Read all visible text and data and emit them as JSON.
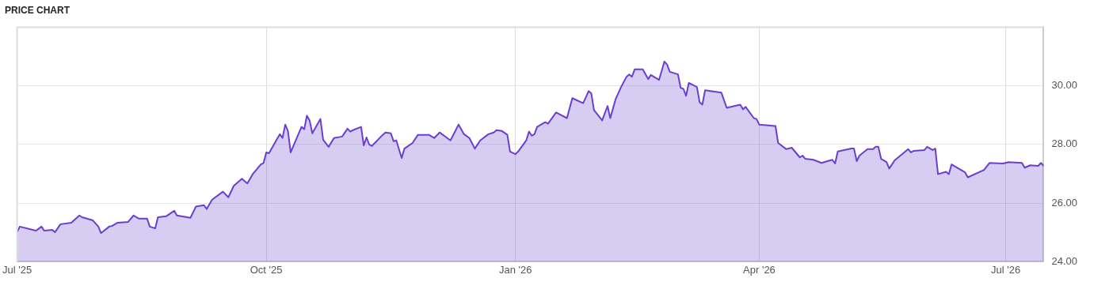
{
  "chart_data": {
    "type": "area",
    "title": "PRICE CHART",
    "x": [
      "2025-07-01",
      "2025-07-02",
      "2025-07-08",
      "2025-07-10",
      "2025-07-11",
      "2025-07-14",
      "2025-07-15",
      "2025-07-17",
      "2025-07-21",
      "2025-07-24",
      "2025-07-25",
      "2025-07-29",
      "2025-07-31",
      "2025-08-01",
      "2025-08-04",
      "2025-08-05",
      "2025-08-07",
      "2025-08-11",
      "2025-08-13",
      "2025-08-15",
      "2025-08-18",
      "2025-08-19",
      "2025-08-21",
      "2025-08-22",
      "2025-08-25",
      "2025-08-28",
      "2025-08-29",
      "2025-09-03",
      "2025-09-05",
      "2025-09-08",
      "2025-09-09",
      "2025-09-11",
      "2025-09-15",
      "2025-09-17",
      "2025-09-19",
      "2025-09-22",
      "2025-09-24",
      "2025-09-26",
      "2025-09-29",
      "2025-09-30",
      "2025-10-01",
      "2025-10-02",
      "2025-10-05",
      "2025-10-06",
      "2025-10-07",
      "2025-10-08",
      "2025-10-09",
      "2025-10-10",
      "2025-10-14",
      "2025-10-15",
      "2025-10-16",
      "2025-10-17",
      "2025-10-18",
      "2025-10-21",
      "2025-10-22",
      "2025-10-24",
      "2025-10-26",
      "2025-10-29",
      "2025-10-31",
      "2025-11-01",
      "2025-11-02",
      "2025-11-05",
      "2025-11-06",
      "2025-11-07",
      "2025-11-08",
      "2025-11-09",
      "2025-11-13",
      "2025-11-14",
      "2025-11-16",
      "2025-11-17",
      "2025-11-18",
      "2025-11-20",
      "2025-11-21",
      "2025-11-24",
      "2025-11-26",
      "2025-11-30",
      "2025-12-02",
      "2025-12-04",
      "2025-12-08",
      "2025-12-11",
      "2025-12-13",
      "2025-12-15",
      "2025-12-17",
      "2025-12-19",
      "2025-12-22",
      "2025-12-24",
      "2025-12-25",
      "2025-12-27",
      "2025-12-29",
      "2025-12-30",
      "2026-01-01",
      "2026-01-02",
      "2026-01-05",
      "2026-01-06",
      "2026-01-07",
      "2026-01-08",
      "2026-01-09",
      "2026-01-12",
      "2026-01-13",
      "2026-01-16",
      "2026-01-20",
      "2026-01-22",
      "2026-01-26",
      "2026-01-28",
      "2026-01-29",
      "2026-01-30",
      "2026-02-02",
      "2026-02-04",
      "2026-02-05",
      "2026-02-07",
      "2026-02-09",
      "2026-02-11",
      "2026-02-12",
      "2026-02-13",
      "2026-02-14",
      "2026-02-17",
      "2026-02-19",
      "2026-02-20",
      "2026-02-23",
      "2026-02-25",
      "2026-02-26",
      "2026-02-27",
      "2026-03-02",
      "2026-03-03",
      "2026-03-04",
      "2026-03-05",
      "2026-03-06",
      "2026-03-09",
      "2026-03-10",
      "2026-03-11",
      "2026-03-12",
      "2026-03-18",
      "2026-03-20",
      "2026-03-25",
      "2026-03-26",
      "2026-03-27",
      "2026-03-30",
      "2026-03-31",
      "2026-04-01",
      "2026-04-07",
      "2026-04-08",
      "2026-04-11",
      "2026-04-13",
      "2026-04-16",
      "2026-04-17",
      "2026-04-18",
      "2026-04-21",
      "2026-04-24",
      "2026-04-28",
      "2026-04-29",
      "2026-04-30",
      "2026-05-05",
      "2026-05-06",
      "2026-05-07",
      "2026-05-08",
      "2026-05-11",
      "2026-05-13",
      "2026-05-14",
      "2026-05-15",
      "2026-05-16",
      "2026-05-18",
      "2026-05-19",
      "2026-05-21",
      "2026-05-26",
      "2026-05-27",
      "2026-05-28",
      "2026-06-01",
      "2026-06-02",
      "2026-06-04",
      "2026-06-05",
      "2026-06-06",
      "2026-06-09",
      "2026-06-10",
      "2026-06-11",
      "2026-06-16",
      "2026-06-17",
      "2026-06-23",
      "2026-06-25",
      "2026-06-30",
      "2026-07-02",
      "2026-07-07",
      "2026-07-08",
      "2026-07-10",
      "2026-07-13",
      "2026-07-14",
      "2026-07-15"
    ],
    "series": [
      {
        "color": "#6a3fd0",
        "values": [
          25.01,
          25.2,
          25.06,
          25.2,
          25.06,
          25.09,
          25.01,
          25.28,
          25.33,
          25.58,
          25.52,
          25.41,
          25.2,
          24.98,
          25.2,
          25.22,
          25.33,
          25.36,
          25.58,
          25.47,
          25.47,
          25.2,
          25.14,
          25.52,
          25.55,
          25.74,
          25.58,
          25.5,
          25.88,
          25.93,
          25.8,
          26.12,
          26.39,
          26.2,
          26.59,
          26.83,
          26.67,
          26.99,
          27.32,
          27.37,
          27.73,
          27.7,
          28.19,
          28.35,
          28.22,
          28.68,
          28.46,
          27.73,
          28.6,
          28.52,
          28.98,
          28.82,
          28.38,
          28.87,
          28.16,
          27.92,
          28.22,
          28.27,
          28.54,
          28.44,
          28.49,
          28.6,
          27.97,
          28.24,
          28.0,
          27.95,
          28.33,
          28.41,
          28.38,
          28.11,
          28.14,
          27.54,
          27.86,
          28.05,
          28.33,
          28.33,
          28.22,
          28.41,
          28.14,
          28.68,
          28.35,
          28.22,
          27.86,
          28.14,
          28.35,
          28.41,
          28.49,
          28.46,
          28.33,
          27.76,
          27.67,
          27.76,
          28.14,
          28.44,
          28.3,
          28.35,
          28.6,
          28.76,
          28.71,
          29.09,
          28.9,
          29.58,
          29.41,
          29.82,
          29.74,
          29.17,
          28.82,
          29.31,
          28.9,
          29.55,
          29.96,
          30.31,
          30.39,
          30.31,
          30.56,
          30.56,
          30.23,
          30.37,
          30.2,
          30.83,
          30.72,
          30.48,
          30.39,
          29.93,
          29.9,
          29.66,
          30.1,
          29.96,
          29.44,
          29.36,
          29.85,
          29.77,
          29.25,
          29.36,
          29.2,
          29.28,
          28.9,
          28.87,
          28.68,
          28.63,
          28.05,
          27.84,
          27.89,
          27.56,
          27.62,
          27.51,
          27.48,
          27.37,
          27.48,
          27.35,
          27.76,
          27.86,
          27.86,
          27.43,
          27.62,
          27.84,
          27.84,
          27.92,
          27.92,
          27.51,
          27.4,
          27.18,
          27.46,
          27.84,
          27.73,
          27.78,
          27.81,
          27.92,
          27.81,
          27.86,
          26.99,
          27.07,
          26.99,
          27.32,
          27.05,
          26.88,
          27.13,
          27.37,
          27.35,
          27.4,
          27.37,
          27.21,
          27.29,
          27.27,
          27.37,
          27.27
        ]
      }
    ],
    "xlim": [
      "2025-07-01",
      "2026-07-15"
    ],
    "xticks": [
      {
        "value": "2025-07-01",
        "label": "Jul '25"
      },
      {
        "value": "2025-10-01",
        "label": "Oct '25"
      },
      {
        "value": "2026-01-01",
        "label": "Jan '26"
      },
      {
        "value": "2026-04-01",
        "label": "Apr '26"
      },
      {
        "value": "2026-07-01",
        "label": "Jul '26"
      }
    ],
    "ylim": [
      24,
      32
    ],
    "yticks": [
      {
        "value": 24,
        "label": "24.00"
      },
      {
        "value": 26,
        "label": "26.00"
      },
      {
        "value": 28,
        "label": "28.00"
      },
      {
        "value": 30,
        "label": "30.00"
      },
      {
        "value": 32,
        "label": null
      }
    ],
    "grid": true,
    "marker": "none",
    "line_style": "solid"
  }
}
